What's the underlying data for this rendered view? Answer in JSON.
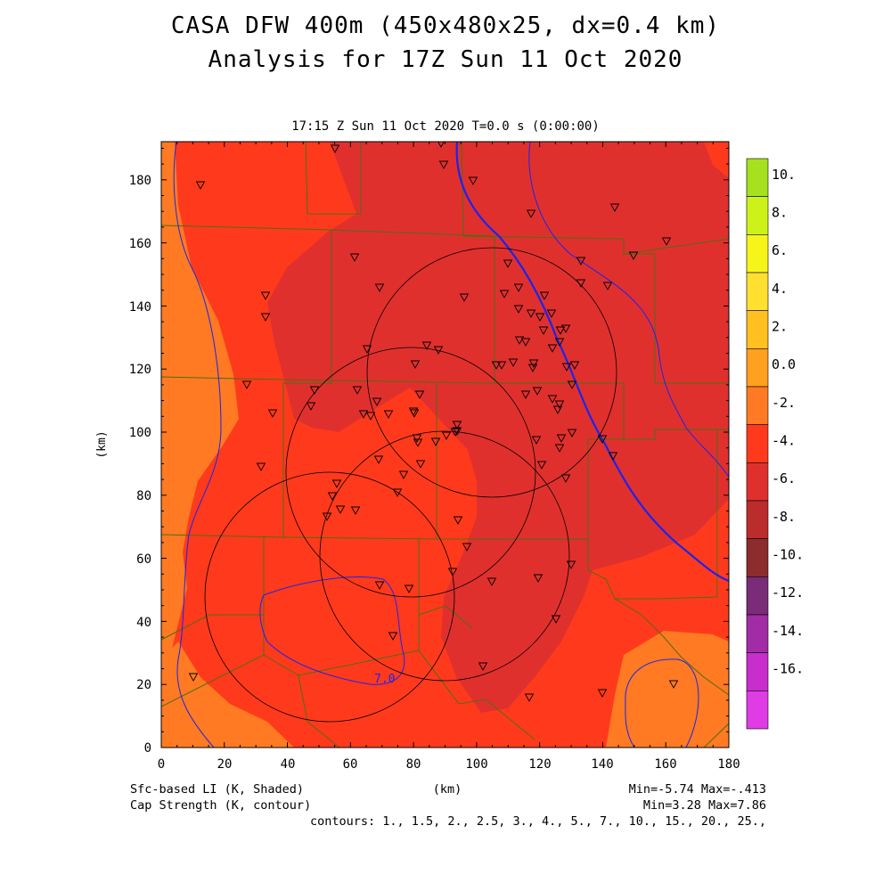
{
  "header": {
    "title_line1": "CASA DFW 400m (450x480x25, dx=0.4 km)",
    "title_line2": "Analysis for 17Z Sun 11 Oct 2020",
    "subtitle": "17:15 Z Sun 11 Oct 2020   T=0.0 s (0:00:00)"
  },
  "axes": {
    "x_label": "(km)",
    "y_label": "(km)",
    "x_ticks": [
      "0",
      "20",
      "40",
      "60",
      "80",
      "100",
      "120",
      "140",
      "160",
      "180"
    ],
    "y_ticks": [
      "0",
      "20",
      "40",
      "60",
      "80",
      "100",
      "120",
      "140",
      "160",
      "180"
    ]
  },
  "colorbar": {
    "labels": [
      "10.",
      "8.",
      "6.",
      "4.",
      "2.",
      "0.0",
      "-2.",
      "-4.",
      "-6.",
      "-8.",
      "-10.",
      "-12.",
      "-14.",
      "-16."
    ],
    "colors": [
      "#a6e01f",
      "#cdf21a",
      "#f5f51a",
      "#ffe030",
      "#ffc020",
      "#ffa020",
      "#ff7a22",
      "#ff3a1c",
      "#e0302e",
      "#bb2c2c",
      "#8c2c2c",
      "#7a2c78",
      "#a22ca6",
      "#c82ecc",
      "#e03ce6"
    ]
  },
  "map": {
    "contour_label": "7.0",
    "colors": {
      "background": "#ff3a1c",
      "darker": "#e0302e",
      "lighter": "#ff7a22",
      "county": "#4d6e12",
      "contour": "#1a24ee",
      "radar": "#000000"
    }
  },
  "footer": {
    "left1": "Sfc-based LI (K, Shaded)",
    "left2": "Cap Strength (K, contour)",
    "center": "(km)",
    "right1": "Min=-5.74 Max=-.413",
    "right2": "Min=3.28 Max=7.86",
    "contours": "contours: 1., 1.5, 2., 2.5, 3., 4., 5., 7., 10., 15., 20., 25.,"
  }
}
